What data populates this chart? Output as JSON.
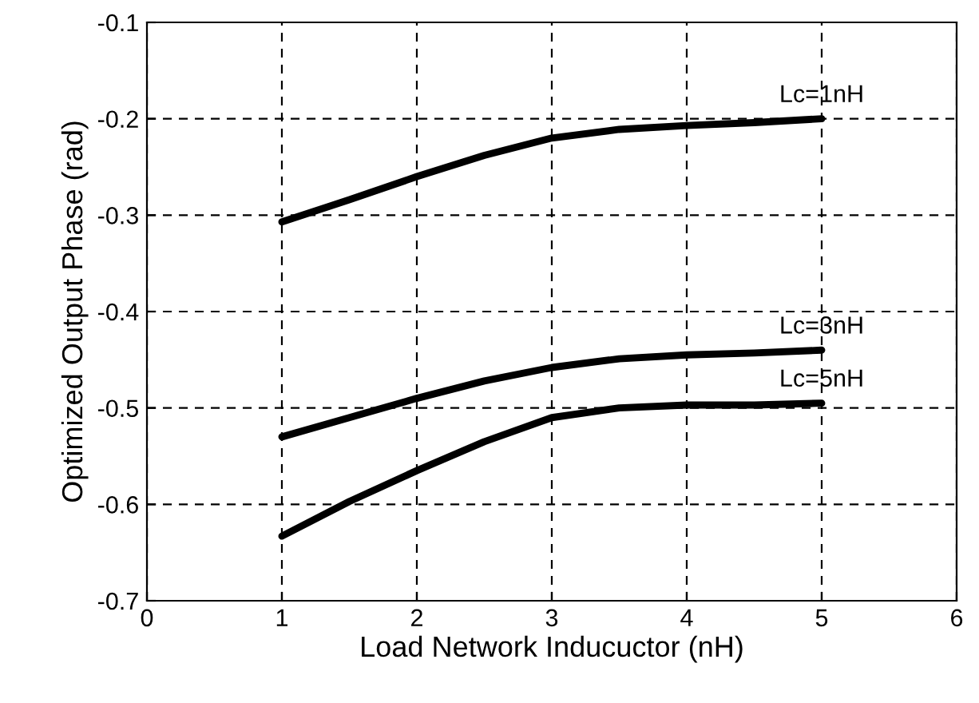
{
  "chart_data": {
    "type": "line",
    "xlabel": "Load Network Inducuctor (nH)",
    "ylabel": "Optimized Output Phase (rad)",
    "x": [
      1,
      1.5,
      2,
      2.5,
      3,
      3.5,
      4,
      4.5,
      5
    ],
    "series": [
      {
        "name": "Lc=1nH",
        "color": "#000000",
        "values": [
          -0.307,
          -0.284,
          -0.26,
          -0.238,
          -0.22,
          -0.211,
          -0.207,
          -0.204,
          -0.2
        ]
      },
      {
        "name": "Lc=3nH",
        "color": "#000000",
        "values": [
          -0.53,
          -0.51,
          -0.49,
          -0.472,
          -0.458,
          -0.449,
          -0.445,
          -0.443,
          -0.44
        ]
      },
      {
        "name": "Lc=5nH",
        "color": "#000000",
        "values": [
          -0.633,
          -0.597,
          -0.565,
          -0.535,
          -0.51,
          -0.5,
          -0.497,
          -0.497,
          -0.495
        ]
      }
    ],
    "xlim": [
      0,
      6
    ],
    "ylim": [
      -0.7,
      -0.1
    ],
    "xticks": [
      0,
      1,
      2,
      3,
      4,
      5,
      6
    ],
    "yticks": [
      -0.7,
      -0.6,
      -0.5,
      -0.4,
      -0.3,
      -0.2,
      -0.1
    ],
    "grid": true,
    "legend": false,
    "marker": "none",
    "line_style": "solid"
  }
}
